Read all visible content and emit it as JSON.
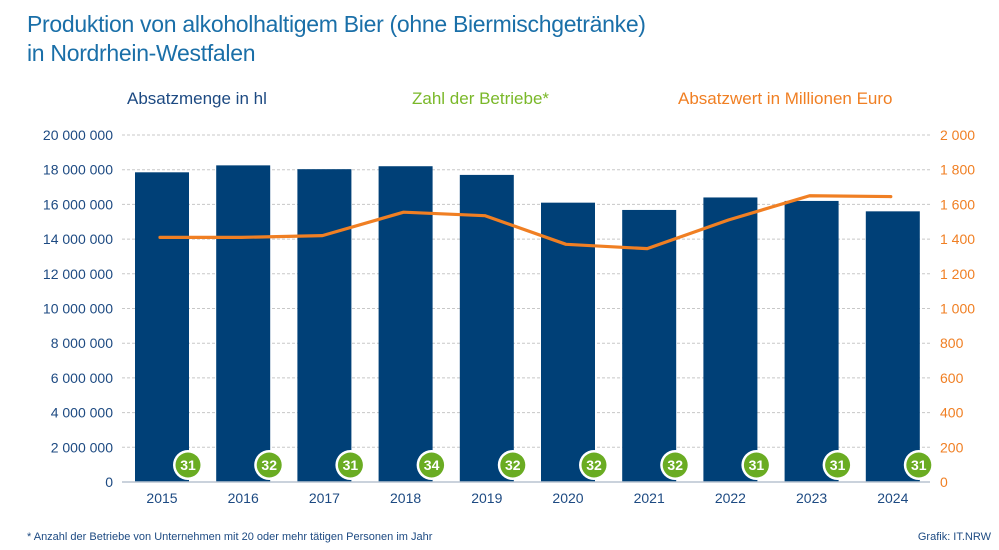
{
  "chart_data": {
    "type": "bar",
    "title": "Produktion von alkoholhaltigem Bier (ohne Biermischgetränke) in Nordrhein-Westfalen",
    "title_lines": [
      "Produktion von alkoholhaltigem Bier (ohne Biermischgetränke)",
      "in Nordrhein-Westfalen"
    ],
    "categories": [
      "2015",
      "2016",
      "2017",
      "2018",
      "2019",
      "2020",
      "2021",
      "2022",
      "2023",
      "2024"
    ],
    "series": [
      {
        "name": "Absatzmenge in hl",
        "type": "bar",
        "axis": "left",
        "color": "#004077",
        "values": [
          17850000,
          18250000,
          18030000,
          18200000,
          17700000,
          16100000,
          15680000,
          16400000,
          16200000,
          15600000
        ]
      },
      {
        "name": "Absatzwert in Millionen Euro",
        "type": "line",
        "axis": "right",
        "color": "#f07f23",
        "values": [
          1410,
          1410,
          1420,
          1555,
          1535,
          1370,
          1345,
          1510,
          1650,
          1645
        ]
      },
      {
        "name": "Zahl der Betriebe*",
        "type": "badge",
        "color": "#6aac22",
        "values": [
          31,
          32,
          31,
          34,
          32,
          32,
          32,
          31,
          31,
          31
        ]
      }
    ],
    "left_axis": {
      "ylim": [
        0,
        20000000
      ],
      "ticks": [
        0,
        2000000,
        4000000,
        6000000,
        8000000,
        10000000,
        12000000,
        14000000,
        16000000,
        18000000,
        20000000
      ],
      "tick_labels": [
        "0",
        "2 000 000",
        "4 000 000",
        "6 000 000",
        "8 000 000",
        "10 000 000",
        "12 000 000",
        "14 000 000",
        "16 000 000",
        "18 000 000",
        "20 000 000"
      ],
      "color": "#1d4a82"
    },
    "right_axis": {
      "ylim": [
        0,
        2000
      ],
      "ticks": [
        0,
        200,
        400,
        600,
        800,
        1000,
        1200,
        1400,
        1600,
        1800,
        2000
      ],
      "tick_labels": [
        "0",
        "200",
        "400",
        "600",
        "800",
        "1 000",
        "1 200",
        "1 400",
        "1 600",
        "1 800",
        "2 000"
      ],
      "color": "#f07f23"
    },
    "xlabel": "",
    "grid": true,
    "legend": [
      "Absatzmenge in hl",
      "Zahl der Betriebe*",
      "Absatzwert in Millionen Euro"
    ],
    "legend_placement": "top"
  },
  "footnote": "* Anzahl der Betriebe von Unternehmen mit 20 oder mehr tätigen Personen im Jahr",
  "credit": "Grafik: IT.NRW"
}
